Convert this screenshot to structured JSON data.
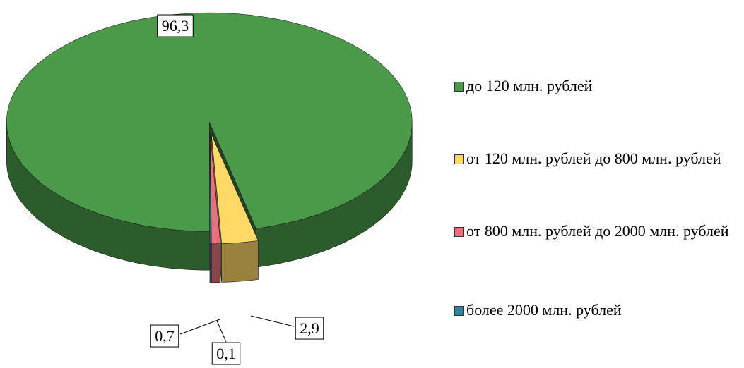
{
  "chart_data": {
    "type": "pie3d",
    "categories": [
      "до 120 млн. рублей",
      "от 120 млн. рублей до 800 млн. рублей",
      "от 800 млн. рублей до 2000 млн. рублей",
      "более 2000 млн. рублей"
    ],
    "values": [
      96.3,
      2.9,
      0.7,
      0.1
    ],
    "value_labels": [
      "96,3",
      "2,9",
      "0,7",
      "0,1"
    ],
    "colors": [
      "#4a9a4a",
      "#ffd966",
      "#e8707f",
      "#31849b"
    ],
    "legend": "right"
  }
}
